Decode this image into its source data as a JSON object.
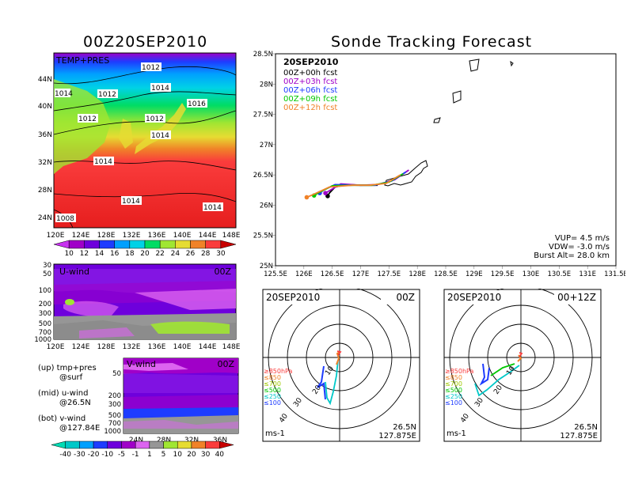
{
  "left_title": "00Z20SEP2010",
  "right_title": "Sonde Tracking Forecast",
  "panels": {
    "temp": {
      "label": "TEMP+PRES",
      "lat_ticks": [
        "44N",
        "40N",
        "36N",
        "32N",
        "28N",
        "24N"
      ],
      "lon_ticks": [
        "120E",
        "124E",
        "128E",
        "132E",
        "136E",
        "140E",
        "144E",
        "148E"
      ],
      "isobar_labels": [
        "1012",
        "1014",
        "1012",
        "1014",
        "1012",
        "1016",
        "1012",
        "1014",
        "1014",
        "1014",
        "1014",
        "1008",
        "1014"
      ],
      "colorbar_labels": [
        "10",
        "12",
        "14",
        "16",
        "18",
        "20",
        "22",
        "24",
        "26",
        "28",
        "30"
      ],
      "colors": [
        "#a000c8",
        "#6e00dc",
        "#1e3cff",
        "#00a0ff",
        "#00d2e6",
        "#00dc64",
        "#a0e632",
        "#e6dc32",
        "#f08228",
        "#fa3c3c",
        "#c80000"
      ]
    },
    "u_wind": {
      "label": "U-wind",
      "time": "00Z",
      "y_ticks": [
        "30",
        "50",
        "100",
        "200",
        "300",
        "500",
        "700",
        "1000"
      ],
      "x_ticks": [
        "120E",
        "124E",
        "128E",
        "132E",
        "136E",
        "140E",
        "144E",
        "148E"
      ]
    },
    "v_wind": {
      "label": "V-wind",
      "time": "00Z",
      "y_ticks": [
        "30",
        "50",
        "100",
        "200",
        "300",
        "500",
        "700",
        "1000"
      ],
      "x_ticks": [
        "24N",
        "28N",
        "32N",
        "36N"
      ]
    },
    "notes": [
      "(up) tmp+pres",
      "@surf",
      "(mid) u-wind",
      "@26.5N",
      "(bot) v-wind",
      "@127.84E"
    ],
    "wind_colorbar": {
      "labels": [
        "-40",
        "-30",
        "-20",
        "-10",
        "-5",
        "-1",
        "1",
        "5",
        "10",
        "20",
        "30",
        "40"
      ],
      "colors": [
        "#00c8c8",
        "#00a0ff",
        "#1e3cff",
        "#6e00dc",
        "#a000c8",
        "#dc64f0",
        "#969696",
        "#a0e632",
        "#e6dc32",
        "#f08228",
        "#fa3c3c",
        "#c80000"
      ]
    },
    "tracking": {
      "date": "20SEP2010",
      "legend": [
        {
          "text": "00Z+00h fcst",
          "color": "#000000"
        },
        {
          "text": "00Z+03h fcst",
          "color": "#a000c8"
        },
        {
          "text": "00Z+06h fcst",
          "color": "#1e3cff"
        },
        {
          "text": "00Z+09h fcst",
          "color": "#00c800"
        },
        {
          "text": "00Z+12h fcst",
          "color": "#f08228"
        }
      ],
      "params": [
        "VUP= 4.5 m/s",
        "VDW= -3.0 m/s",
        "Burst Alt= 28.0 km"
      ],
      "lat_ticks": [
        "28.5N",
        "28N",
        "27.5N",
        "27N",
        "26.5N",
        "26N",
        "25.5N",
        "25N"
      ],
      "lon_ticks": [
        "125.5E",
        "126E",
        "126.5E",
        "127E",
        "127.5E",
        "128E",
        "128.5E",
        "129E",
        "129.5E",
        "130E",
        "130.5E",
        "131E",
        "131.5E"
      ]
    },
    "hodo_left": {
      "date": "20SEP2010",
      "time": "00Z",
      "ring_labels": [
        "10",
        "20",
        "30",
        "40"
      ],
      "levels": [
        "≥850hPa",
        "≤850",
        "≤700",
        "≤500",
        "≤250",
        "≤100"
      ],
      "level_colors": [
        "#fa3c3c",
        "#f08228",
        "#a0c800",
        "#00c800",
        "#00c8c8",
        "#1e3cff"
      ],
      "unit": "ms-1",
      "lat": "26.5N",
      "lon": "127.875E"
    },
    "hodo_right": {
      "date": "20SEP2010",
      "time": "00+12Z",
      "ring_labels": [
        "10",
        "20",
        "30",
        "40"
      ],
      "levels": [
        "≥850hPa",
        "≤850",
        "≤700",
        "≤500",
        "≤250",
        "≤100"
      ],
      "level_colors": [
        "#fa3c3c",
        "#f08228",
        "#a0c800",
        "#00c800",
        "#00c8c8",
        "#1e3cff"
      ],
      "unit": "ms-1",
      "lat": "26.5N",
      "lon": "127.875E"
    }
  },
  "chart_data": [
    {
      "type": "heatmap",
      "title": "00Z20SEP2010",
      "label": "TEMP+PRES",
      "x_range": [
        "120E",
        "150E"
      ],
      "y_range": [
        "22N",
        "48N"
      ],
      "colorbar": [
        10,
        12,
        14,
        16,
        18,
        20,
        22,
        24,
        26,
        28,
        30
      ],
      "isobars_hPa": [
        1008,
        1012,
        1014,
        1016
      ]
    },
    {
      "type": "heatmap",
      "label": "U-wind",
      "x_range": [
        "120E",
        "150E"
      ],
      "y_levels_hPa": [
        30,
        50,
        100,
        200,
        300,
        500,
        700,
        1000
      ]
    },
    {
      "type": "heatmap",
      "label": "V-wind",
      "x_range": [
        "21N",
        "38N"
      ],
      "y_levels_hPa": [
        30,
        50,
        100,
        200,
        300,
        500,
        700,
        1000
      ]
    },
    {
      "type": "line",
      "title": "Sonde Tracking Forecast",
      "xlim": [
        125.5,
        131.5
      ],
      "ylim": [
        25.0,
        28.5
      ],
      "series": [
        {
          "name": "00Z+00h fcst",
          "color": "#000000",
          "lon": [
            127.3,
            127.0,
            126.75,
            126.55,
            126.45,
            126.42
          ],
          "lat": [
            26.33,
            26.33,
            26.34,
            26.3,
            26.2,
            26.15
          ]
        },
        {
          "name": "00Z+03h fcst",
          "color": "#a000c8",
          "lon": [
            127.85,
            127.6,
            127.3,
            127.0,
            126.65,
            126.45,
            126.38
          ],
          "lat": [
            26.58,
            26.42,
            26.34,
            26.33,
            26.35,
            26.24,
            26.2
          ]
        },
        {
          "name": "00Z+06h fcst",
          "color": "#1e3cff",
          "lon": [
            127.8,
            127.55,
            127.25,
            126.95,
            126.55,
            126.35,
            126.28
          ],
          "lat": [
            26.55,
            26.4,
            26.33,
            26.33,
            26.34,
            26.25,
            26.2
          ]
        },
        {
          "name": "00Z+09h fcst",
          "color": "#00c800",
          "lon": [
            127.75,
            127.5,
            127.2,
            126.9,
            126.5,
            126.25,
            126.18
          ],
          "lat": [
            26.52,
            26.38,
            26.33,
            26.33,
            26.32,
            26.2,
            26.16
          ]
        },
        {
          "name": "00Z+12h fcst",
          "color": "#f08228",
          "lon": [
            127.7,
            127.45,
            127.15,
            126.85,
            126.45,
            126.15,
            126.05
          ],
          "lat": [
            26.5,
            26.36,
            26.33,
            26.33,
            26.3,
            26.17,
            26.13
          ]
        }
      ],
      "annotations": [
        "VUP= 4.5 m/s",
        "VDW= -3.0 m/s",
        "Burst Alt= 28.0 km"
      ]
    }
  ]
}
